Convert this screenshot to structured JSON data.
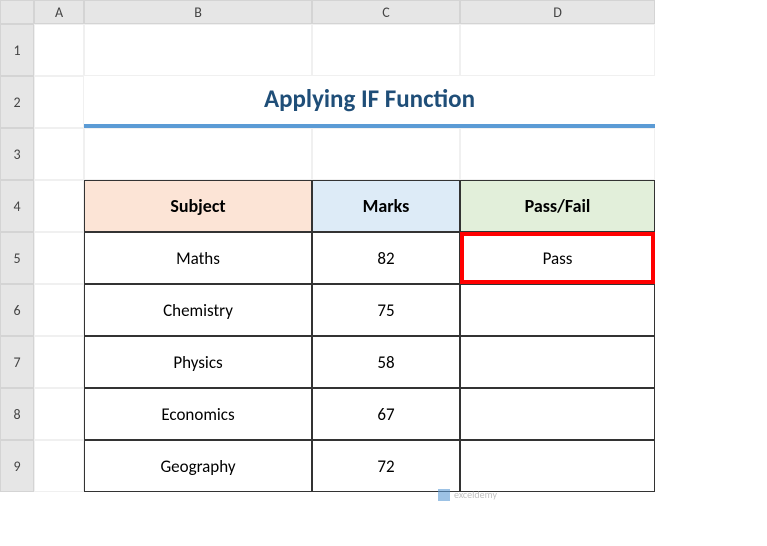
{
  "columns": [
    "",
    "A",
    "B",
    "C",
    "D"
  ],
  "row_numbers": [
    "1",
    "2",
    "3",
    "4",
    "5",
    "6",
    "7",
    "8",
    "9"
  ],
  "title": "Applying IF Function",
  "headers": {
    "subject": "Subject",
    "marks": "Marks",
    "passfail": "Pass/Fail"
  },
  "data_rows": [
    {
      "subject": "Maths",
      "marks": "82",
      "result": "Pass"
    },
    {
      "subject": "Chemistry",
      "marks": "75",
      "result": ""
    },
    {
      "subject": "Physics",
      "marks": "58",
      "result": ""
    },
    {
      "subject": "Economics",
      "marks": "67",
      "result": ""
    },
    {
      "subject": "Geography",
      "marks": "72",
      "result": ""
    }
  ],
  "colors": {
    "header_subject_bg": "#fce4d6",
    "header_marks_bg": "#ddebf7",
    "header_passfail_bg": "#e2efda",
    "title_color": "#1f4e78",
    "title_underline": "#5b9bd5",
    "highlight_border": "#ff0000",
    "col_header_bg": "#e6e6e6",
    "cell_border": "#333333"
  },
  "watermark": "exceldemy"
}
